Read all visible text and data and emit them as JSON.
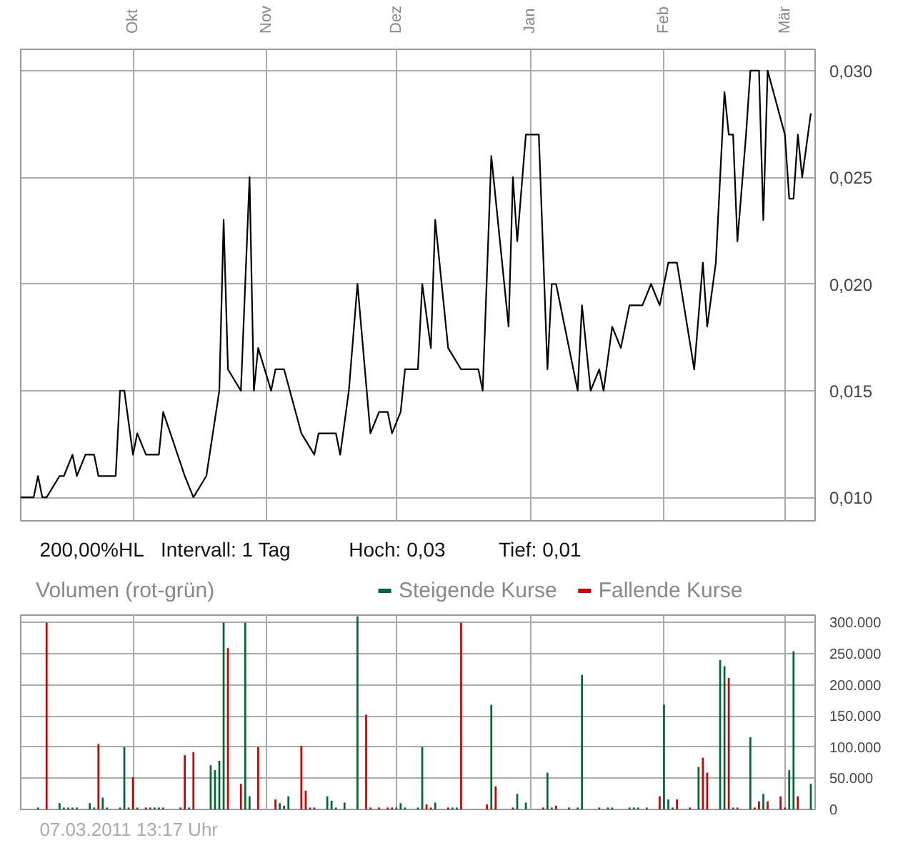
{
  "chart_data": [
    {
      "type": "line",
      "xlim": [
        "2010-09-05",
        "2011-03-08"
      ],
      "ylim": [
        0.0089,
        0.031
      ],
      "xticks": [
        {
          "value": "2010-10-01",
          "label": "Okt"
        },
        {
          "value": "2010-11-01",
          "label": "Nov"
        },
        {
          "value": "2010-12-01",
          "label": "Dez"
        },
        {
          "value": "2011-01-01",
          "label": "Jan"
        },
        {
          "value": "2011-02-01",
          "label": "Feb"
        },
        {
          "value": "2011-03-01",
          "label": "Mär"
        }
      ],
      "yticks": [
        {
          "value": 0.01,
          "label": "0,010"
        },
        {
          "value": 0.015,
          "label": "0,015"
        },
        {
          "value": 0.02,
          "label": "0,020"
        },
        {
          "value": 0.025,
          "label": "0,025"
        },
        {
          "value": 0.03,
          "label": "0,030"
        }
      ],
      "grid": true,
      "line_style": "solid",
      "annotations": [
        "200,00%HL",
        "Intervall: 1 Tag",
        "Hoch:   0,03",
        "Tief:   0,01"
      ],
      "series": [
        {
          "color": "#000000",
          "x": [
            "2010-09-05",
            "2010-09-08",
            "2010-09-09",
            "2010-09-10",
            "2010-09-11",
            "2010-09-14",
            "2010-09-15",
            "2010-09-17",
            "2010-09-18",
            "2010-09-20",
            "2010-09-22",
            "2010-09-23",
            "2010-09-27",
            "2010-09-28",
            "2010-09-29",
            "2010-10-01",
            "2010-10-02",
            "2010-10-04",
            "2010-10-07",
            "2010-10-08",
            "2010-10-13",
            "2010-10-15",
            "2010-10-18",
            "2010-10-21",
            "2010-10-22",
            "2010-10-23",
            "2010-10-26",
            "2010-10-28",
            "2010-10-29",
            "2010-10-30",
            "2010-11-02",
            "2010-11-03",
            "2010-11-05",
            "2010-11-09",
            "2010-11-12",
            "2010-11-13",
            "2010-11-17",
            "2010-11-18",
            "2010-11-20",
            "2010-11-22",
            "2010-11-25",
            "2010-11-27",
            "2010-11-29",
            "2010-11-30",
            "2010-12-02",
            "2010-12-03",
            "2010-12-06",
            "2010-12-07",
            "2010-12-09",
            "2010-12-10",
            "2010-12-13",
            "2010-12-16",
            "2010-12-20",
            "2010-12-21",
            "2010-12-23",
            "2010-12-27",
            "2010-12-28",
            "2010-12-29",
            "2010-12-31",
            "2011-01-03",
            "2011-01-05",
            "2011-01-06",
            "2011-01-07",
            "2011-01-12",
            "2011-01-13",
            "2011-01-15",
            "2011-01-17",
            "2011-01-18",
            "2011-01-20",
            "2011-01-22",
            "2011-01-24",
            "2011-01-27",
            "2011-01-29",
            "2011-01-31",
            "2011-02-02",
            "2011-02-04",
            "2011-02-08",
            "2011-02-10",
            "2011-02-11",
            "2011-02-13",
            "2011-02-15",
            "2011-02-16",
            "2011-02-17",
            "2011-02-18",
            "2011-02-20",
            "2011-02-21",
            "2011-02-23",
            "2011-02-24",
            "2011-02-25",
            "2011-03-01",
            "2011-03-02",
            "2011-03-03",
            "2011-03-04",
            "2011-03-05",
            "2011-03-07"
          ],
          "values": [
            0.01,
            0.01,
            0.011,
            0.01,
            0.01,
            0.011,
            0.011,
            0.012,
            0.011,
            0.012,
            0.012,
            0.011,
            0.011,
            0.015,
            0.015,
            0.012,
            0.013,
            0.012,
            0.012,
            0.014,
            0.011,
            0.01,
            0.011,
            0.015,
            0.023,
            0.016,
            0.015,
            0.025,
            0.015,
            0.017,
            0.015,
            0.016,
            0.016,
            0.013,
            0.012,
            0.013,
            0.013,
            0.012,
            0.015,
            0.02,
            0.013,
            0.014,
            0.014,
            0.013,
            0.014,
            0.016,
            0.016,
            0.02,
            0.017,
            0.023,
            0.017,
            0.016,
            0.016,
            0.015,
            0.026,
            0.018,
            0.025,
            0.022,
            0.027,
            0.027,
            0.016,
            0.02,
            0.02,
            0.015,
            0.019,
            0.015,
            0.016,
            0.015,
            0.018,
            0.017,
            0.019,
            0.019,
            0.02,
            0.019,
            0.021,
            0.021,
            0.016,
            0.021,
            0.018,
            0.021,
            0.029,
            0.027,
            0.027,
            0.022,
            0.027,
            0.03,
            0.03,
            0.023,
            0.03,
            0.027,
            0.024,
            0.024,
            0.027,
            0.025,
            0.028
          ]
        }
      ]
    },
    {
      "type": "bar",
      "title": "Volumen (rot-grün)",
      "xlim": [
        "2010-09-05",
        "2011-03-08"
      ],
      "ylim": [
        0,
        312000
      ],
      "xticks": [
        {
          "value": "2010-10-01",
          "label": null
        },
        {
          "value": "2010-11-01",
          "label": null
        },
        {
          "value": "2010-12-01",
          "label": null
        },
        {
          "value": "2011-01-01",
          "label": null
        },
        {
          "value": "2011-02-01",
          "label": null
        },
        {
          "value": "2011-03-01",
          "label": null
        }
      ],
      "yticks": [
        0,
        {
          "value": 50000,
          "label": "50.000"
        },
        {
          "value": 100000,
          "label": "100.000"
        },
        {
          "value": 150000,
          "label": "150.000"
        },
        {
          "value": 200000,
          "label": "200.000"
        },
        {
          "value": 250000,
          "label": "250.000"
        },
        {
          "value": 300000,
          "label": "300.000"
        }
      ],
      "tick_labels": "y",
      "grid": true,
      "legend": "top",
      "annotations": [
        "07.03.2011 13:17 Uhr"
      ],
      "series": [
        {
          "name": "Steigende Kurse",
          "color": "#006633",
          "x": [
            "2010-09-09",
            "2010-09-14",
            "2010-09-15",
            "2010-09-16",
            "2010-09-17",
            "2010-09-18",
            "2010-09-21",
            "2010-09-22",
            "2010-09-24",
            "2010-09-25",
            "2010-09-28",
            "2010-09-29",
            "2010-09-30",
            "2010-10-02",
            "2010-10-05",
            "2010-10-06",
            "2010-10-07",
            "2010-10-08",
            "2010-10-14",
            "2010-10-19",
            "2010-10-20",
            "2010-10-21",
            "2010-10-22",
            "2010-10-27",
            "2010-10-28",
            "2010-11-04",
            "2010-11-05",
            "2010-11-06",
            "2010-11-11",
            "2010-11-15",
            "2010-11-16",
            "2010-11-17",
            "2010-11-19",
            "2010-11-22",
            "2010-12-01",
            "2010-12-02",
            "2010-12-03",
            "2010-12-06",
            "2010-12-07",
            "2010-12-10",
            "2010-12-14",
            "2010-12-15",
            "2010-12-23",
            "2010-12-29",
            "2010-12-31",
            "2011-01-05",
            "2011-01-06",
            "2011-01-12",
            "2011-01-13",
            "2011-01-19",
            "2011-01-20",
            "2011-01-24",
            "2011-01-25",
            "2011-01-26",
            "2011-01-28",
            "2011-02-01",
            "2011-02-02",
            "2011-02-03",
            "2011-02-09",
            "2011-02-14",
            "2011-02-15",
            "2011-02-17",
            "2011-02-21",
            "2011-02-24",
            "2011-03-02",
            "2011-03-03",
            "2011-03-07"
          ],
          "values": [
            3000,
            10000,
            3000,
            3000,
            3000,
            3000,
            10000,
            3000,
            19000,
            3000,
            3000,
            100000,
            3000,
            3000,
            3000,
            3000,
            3000,
            3000,
            3000,
            71000,
            63000,
            78000,
            300000,
            300000,
            21000,
            10000,
            6000,
            21000,
            3000,
            21000,
            14000,
            3000,
            11000,
            310000,
            3000,
            10000,
            3000,
            3000,
            100000,
            11000,
            3000,
            3000,
            168000,
            25000,
            11000,
            59000,
            3000,
            3000,
            216000,
            3000,
            3000,
            3000,
            3000,
            3000,
            3000,
            168000,
            16000,
            3000,
            68000,
            240000,
            230000,
            3000,
            116000,
            25000,
            63000,
            254000,
            41000
          ]
        },
        {
          "name": "Fallende Kurse",
          "color": "#cc0000",
          "x": [
            "2010-09-11",
            "2010-09-23",
            "2010-10-01",
            "2010-10-04",
            "2010-10-12",
            "2010-10-13",
            "2010-10-15",
            "2010-10-23",
            "2010-10-26",
            "2010-10-30",
            "2010-11-03",
            "2010-11-09",
            "2010-11-10",
            "2010-11-12",
            "2010-11-24",
            "2010-11-25",
            "2010-11-27",
            "2010-11-29",
            "2010-11-30",
            "2010-12-08",
            "2010-12-09",
            "2010-12-13",
            "2010-12-16",
            "2010-12-22",
            "2010-12-24",
            "2010-12-28",
            "2011-01-04",
            "2011-01-07",
            "2011-01-10",
            "2011-01-17",
            "2011-01-31",
            "2011-02-04",
            "2011-02-07",
            "2011-02-10",
            "2011-02-11",
            "2011-02-16",
            "2011-02-18",
            "2011-02-22",
            "2011-02-23",
            "2011-02-25",
            "2011-02-28",
            "2011-03-01",
            "2011-03-04"
          ],
          "values": [
            300000,
            105000,
            52000,
            3000,
            3000,
            87000,
            92000,
            259000,
            41000,
            100000,
            16000,
            102000,
            30000,
            3000,
            152000,
            3000,
            3000,
            3000,
            3000,
            8000,
            3000,
            3000,
            300000,
            8000,
            37000,
            3000,
            3000,
            6000,
            3000,
            3000,
            21000,
            16000,
            3000,
            83000,
            59000,
            211000,
            3000,
            3000,
            13000,
            13000,
            21000,
            3000,
            21000
          ]
        }
      ]
    }
  ]
}
